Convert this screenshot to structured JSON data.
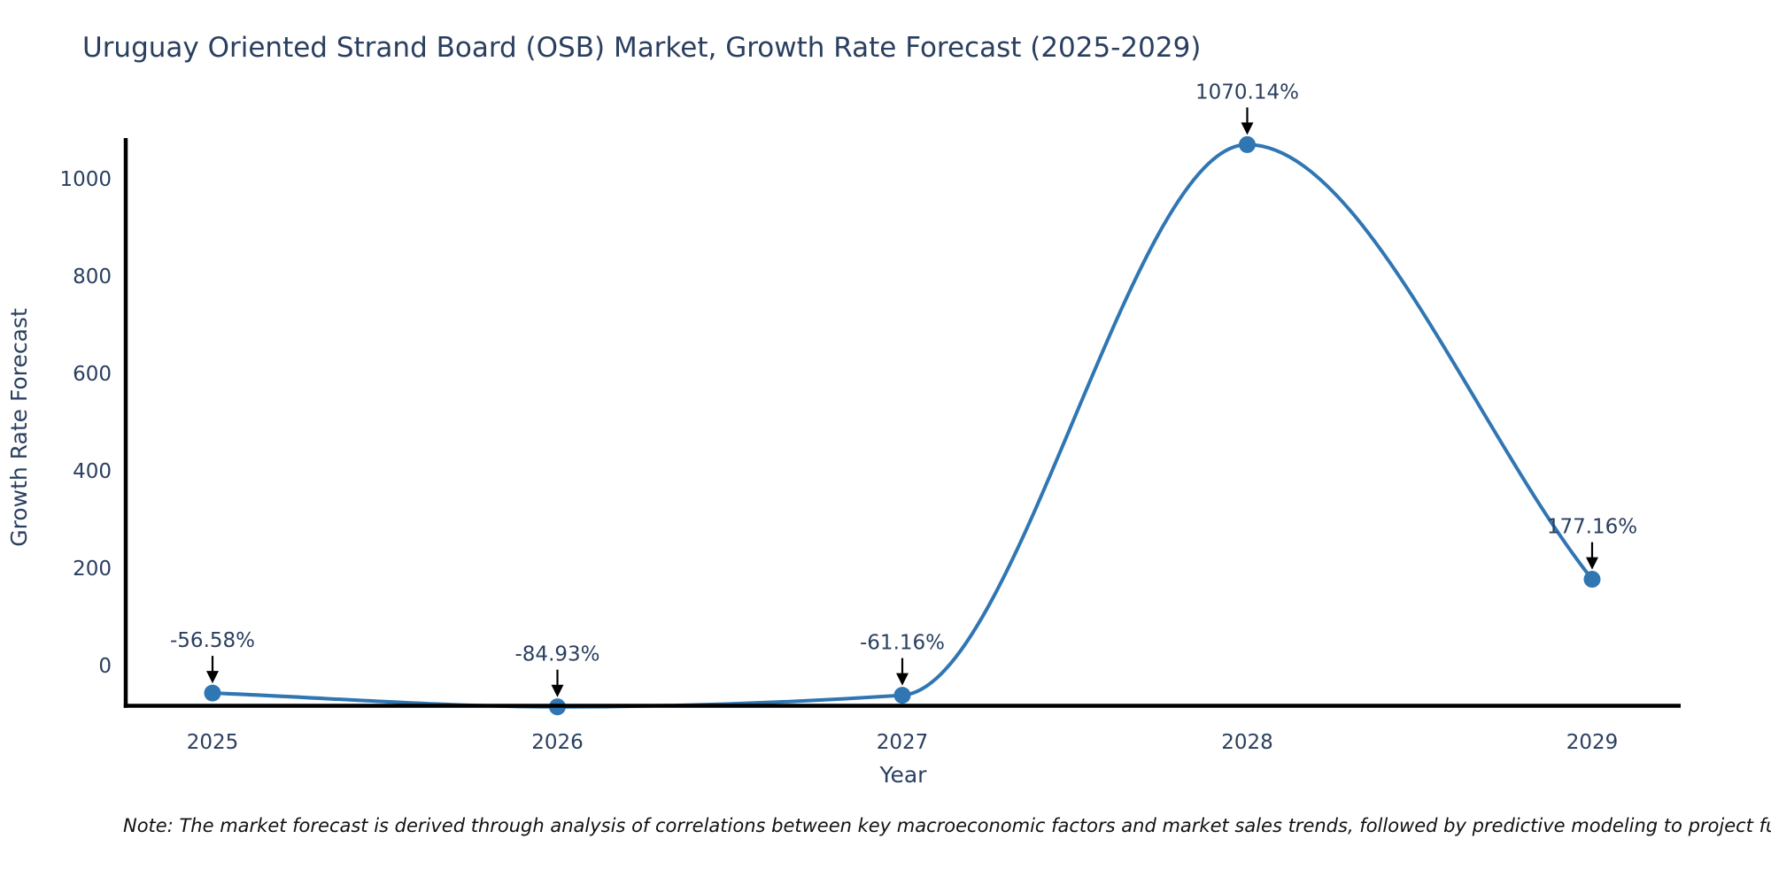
{
  "footer": {
    "note": "Note: The market forecast is derived through analysis of correlations between key macroeconomic factors and market sales trends, followed by predictive modeling to project future sa"
  },
  "chart_data": {
    "type": "line",
    "line_shape": "spline",
    "title": "Uruguay Oriented Strand Board (OSB) Market, Growth Rate Forecast (2025-2029)",
    "xlabel": "Year",
    "ylabel": "Growth Rate Forecast",
    "categories": [
      "2025",
      "2026",
      "2027",
      "2028",
      "2029"
    ],
    "values": [
      -56.58,
      -84.93,
      -61.16,
      1070.14,
      177.16
    ],
    "point_labels": [
      "-56.58%",
      "-84.93%",
      "-61.16%",
      "1070.14%",
      "177.16%"
    ],
    "y_ticks": [
      0,
      200,
      400,
      600,
      800,
      1000
    ],
    "ylim": [
      -85,
      1080
    ],
    "grid": false,
    "legend": "none",
    "annotation_style": "label-with-down-arrow",
    "colors": {
      "line": "#2f76b3",
      "marker": "#2f76b3",
      "axis": "#000000",
      "text": "#2a3f5f",
      "note": "#111111",
      "background": "#ffffff"
    }
  }
}
